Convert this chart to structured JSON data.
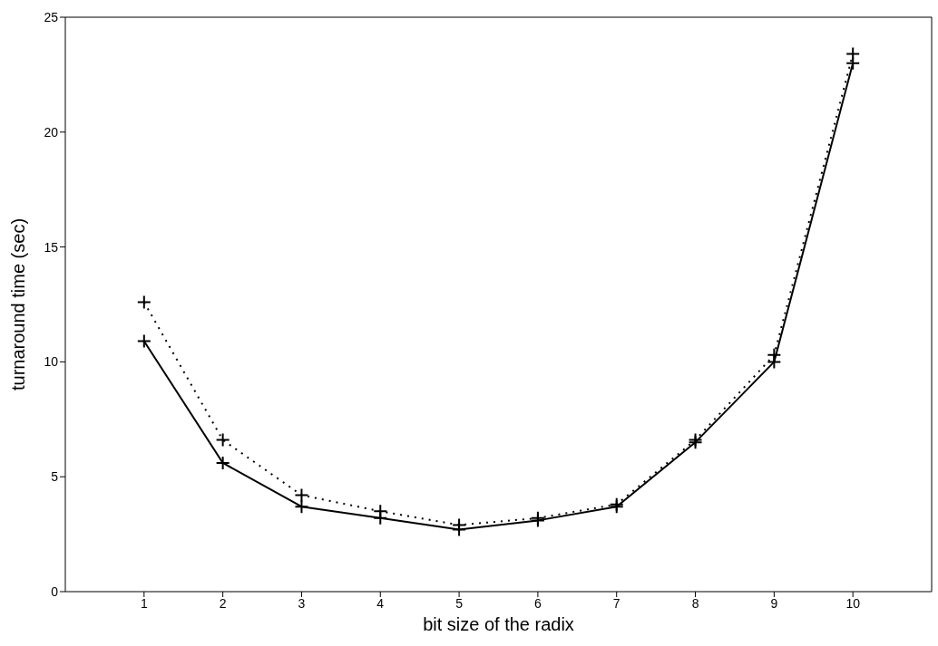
{
  "chart_data": {
    "type": "line",
    "xlabel": "bit size of the radix",
    "ylabel": "turnaround time (sec)",
    "x": [
      1,
      2,
      3,
      4,
      5,
      6,
      7,
      8,
      9,
      10
    ],
    "series": [
      {
        "color": "#000000",
        "line_style": "solid",
        "marker": "cross",
        "values": [
          10.9,
          5.6,
          3.7,
          3.2,
          2.7,
          3.1,
          3.7,
          6.5,
          10.0,
          23.0
        ]
      },
      {
        "color": "#000000",
        "line_style": "dotted",
        "marker": "cross",
        "values": [
          12.6,
          6.6,
          4.2,
          3.5,
          2.9,
          3.2,
          3.8,
          6.6,
          10.3,
          23.4
        ]
      }
    ],
    "xlim": [
      0,
      11
    ],
    "xticks": [
      1,
      2,
      3,
      4,
      5,
      6,
      7,
      8,
      9,
      10
    ],
    "ylim": [
      0,
      25
    ],
    "yticks": [
      0,
      5,
      10,
      15,
      20,
      25
    ],
    "grid": false,
    "legend": false
  }
}
